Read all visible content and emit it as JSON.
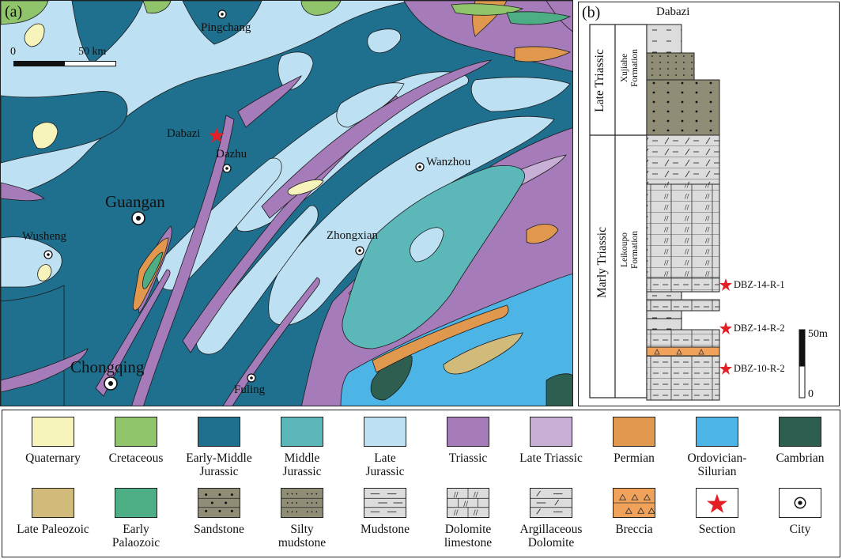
{
  "panel_a": {
    "label": "(a)",
    "scale": {
      "start": "0",
      "end": "50 km"
    },
    "cities": {
      "pingchang": "Pingchang",
      "dazhu": "Dazhu",
      "wanzhou": "Wanzhou",
      "guangan": "Guangan",
      "wusheng": "Wusheng",
      "zhongxian": "Zhongxian",
      "chongqing": "Chongqing",
      "fuling": "Fuling"
    },
    "section_label": "Dabazi",
    "colors": {
      "late_jurassic": "#bde0f3",
      "early_middle_jurassic": "#1f6f8e",
      "triassic": "#a57bb9",
      "late_triassic": "#c8afd6",
      "middle_jurassic": "#5bb7b8",
      "ordovician_silurian": "#4db4e6",
      "permian": "#e0984e",
      "cretaceous": "#8fc46b",
      "quaternary": "#f6f4bb",
      "cambrian": "#2d5e4f",
      "late_paleozoic": "#d0bb7b",
      "early_paleozoic": "#4dae85",
      "section_star": "#e31e24"
    }
  },
  "panel_b": {
    "label": "(b)",
    "title": "Dabazi",
    "periods": {
      "upper": "Late Triassic",
      "lower": "Marly Triassic"
    },
    "formations": {
      "upper": "Xujiahe\nFormation",
      "lower": "Leikoupo\nFormation"
    },
    "samples": [
      "DBZ-14-R-1",
      "DBZ-14-R-2",
      "DBZ-10-R-2"
    ],
    "scale": {
      "top": "50m",
      "bottom": "0"
    }
  },
  "legend": {
    "items": [
      {
        "label": "Quaternary",
        "icon": "swatch",
        "color": "#f6f4bb"
      },
      {
        "label": "Cretaceous",
        "icon": "swatch",
        "color": "#8fc46b"
      },
      {
        "label": "Early-Middle\nJurassic",
        "icon": "swatch",
        "color": "#1f6f8e"
      },
      {
        "label": "Middle\nJurassic",
        "icon": "swatch",
        "color": "#5bb7b8"
      },
      {
        "label": "Late\nJurassic",
        "icon": "swatch",
        "color": "#bde0f3"
      },
      {
        "label": "Triassic",
        "icon": "swatch",
        "color": "#a57bb9"
      },
      {
        "label": "Late Triassic",
        "icon": "swatch",
        "color": "#c8afd6"
      },
      {
        "label": "Permian",
        "icon": "swatch",
        "color": "#e0984e"
      },
      {
        "label": "Ordovician-\nSilurian",
        "icon": "swatch",
        "color": "#4db4e6"
      },
      {
        "label": "Cambrian",
        "icon": "swatch",
        "color": "#2d5e4f"
      },
      {
        "label": "Late Paleozoic",
        "icon": "swatch",
        "color": "#d0bb7b"
      },
      {
        "label": "Early\nPalaozoic",
        "icon": "swatch",
        "color": "#4dae85"
      },
      {
        "label": "Sandstone",
        "icon": "sandstone-pattern",
        "color": "#8f8d76"
      },
      {
        "label": "Silty\nmudstone",
        "icon": "silty-mudstone-pattern",
        "color": "#8f8d76"
      },
      {
        "label": "Mudstone",
        "icon": "mudstone-pattern",
        "color": "#dcdcdc"
      },
      {
        "label": "Dolomite\nlimestone",
        "icon": "dolomite-limestone-pattern",
        "color": "#dcdcdc"
      },
      {
        "label": "Argillaceous\nDolomite",
        "icon": "argillaceous-dolomite-pattern",
        "color": "#dcdcdc"
      },
      {
        "label": "Breccia",
        "icon": "breccia-pattern",
        "color": "#f0a15a"
      },
      {
        "label": "Section",
        "icon": "red-star-icon",
        "color": "#e31e24"
      },
      {
        "label": "City",
        "icon": "city-dot-icon",
        "color": "#111111"
      }
    ]
  }
}
